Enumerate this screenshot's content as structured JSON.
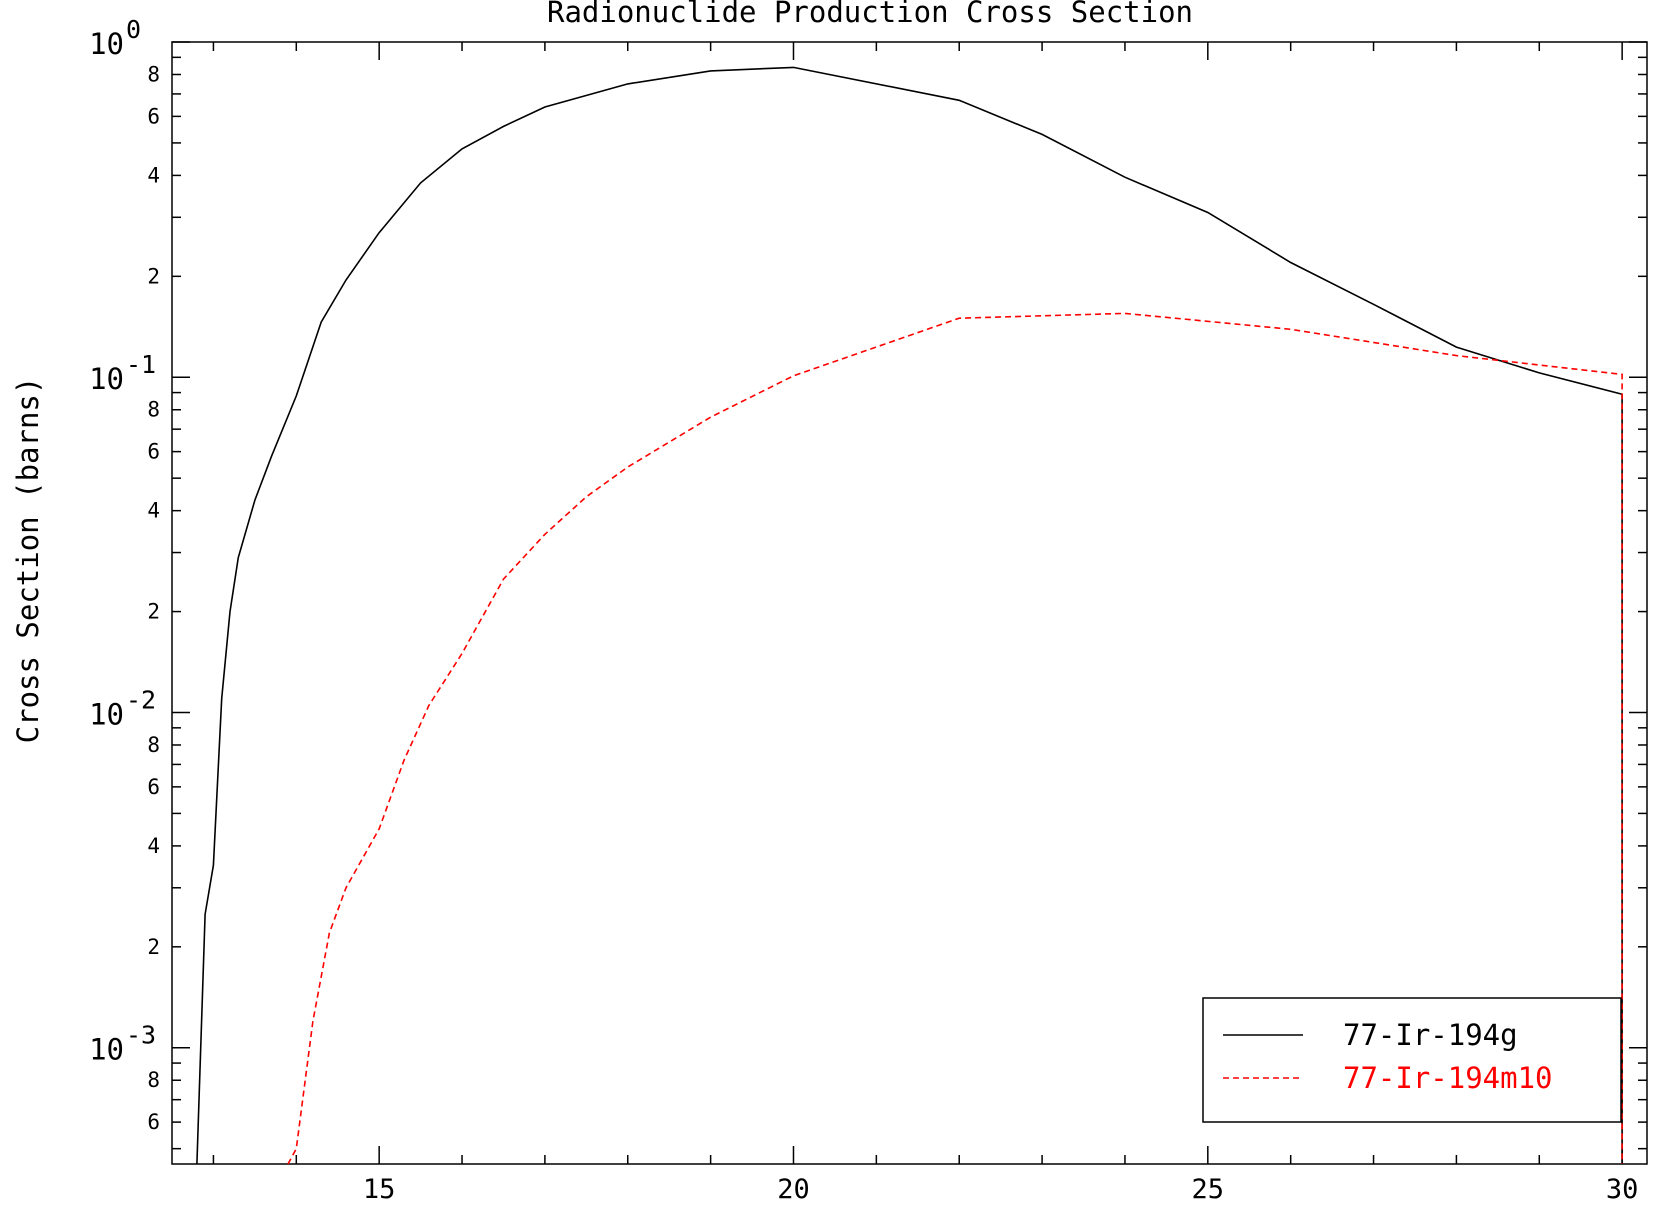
{
  "chart_data": {
    "type": "line",
    "title": "Radionuclide Production Cross Section",
    "xlabel": "",
    "ylabel": "Cross Section (barns)",
    "xlim": [
      12.5,
      30.3
    ],
    "ylim": [
      0.00045,
      1.0
    ],
    "yscale": "log",
    "grid": false,
    "legend_position": "bottom-right",
    "x_ticks": [
      15,
      20,
      25,
      30
    ],
    "x_tick_labels": [
      "15",
      "20",
      "25",
      "30"
    ],
    "y_decades": [
      {
        "base": "10",
        "exp": "0",
        "value": 1.0
      },
      {
        "base": "10",
        "exp": "-1",
        "value": 0.1
      },
      {
        "base": "10",
        "exp": "-2",
        "value": 0.01
      },
      {
        "base": "10",
        "exp": "-3",
        "value": 0.001
      }
    ],
    "y_minor_labels": [
      "2",
      "4",
      "6",
      "8"
    ],
    "series": [
      {
        "name": "77-Ir-194g",
        "color": "#000000",
        "dash": "solid",
        "x": [
          12.8,
          12.9,
          13.0,
          13.1,
          13.2,
          13.3,
          13.5,
          13.7,
          14.0,
          14.3,
          14.6,
          15.0,
          15.5,
          16.0,
          16.5,
          17.0,
          18.0,
          19.0,
          20.0,
          22.0,
          23.0,
          24.0,
          25.0,
          26.0,
          27.0,
          28.0,
          29.0,
          30.0,
          30.0
        ],
        "y": [
          0.00045,
          0.0025,
          0.0035,
          0.011,
          0.02,
          0.029,
          0.043,
          0.058,
          0.088,
          0.146,
          0.195,
          0.27,
          0.38,
          0.48,
          0.56,
          0.64,
          0.75,
          0.82,
          0.84,
          0.67,
          0.53,
          0.395,
          0.31,
          0.22,
          0.165,
          0.123,
          0.103,
          0.089,
          0.00045
        ]
      },
      {
        "name": "77-Ir-194m10",
        "color": "#ff0000",
        "dash": "dashed",
        "x": [
          13.9,
          14.0,
          14.2,
          14.4,
          14.6,
          15.0,
          15.3,
          15.6,
          16.0,
          16.5,
          17.0,
          17.5,
          18.0,
          19.0,
          20.0,
          22.0,
          24.0,
          26.0,
          28.0,
          30.0,
          30.0
        ],
        "y": [
          0.00045,
          0.0005,
          0.0012,
          0.0022,
          0.003,
          0.0045,
          0.0072,
          0.0105,
          0.015,
          0.025,
          0.034,
          0.044,
          0.054,
          0.076,
          0.101,
          0.15,
          0.155,
          0.139,
          0.116,
          0.102,
          0.00045
        ]
      }
    ]
  }
}
